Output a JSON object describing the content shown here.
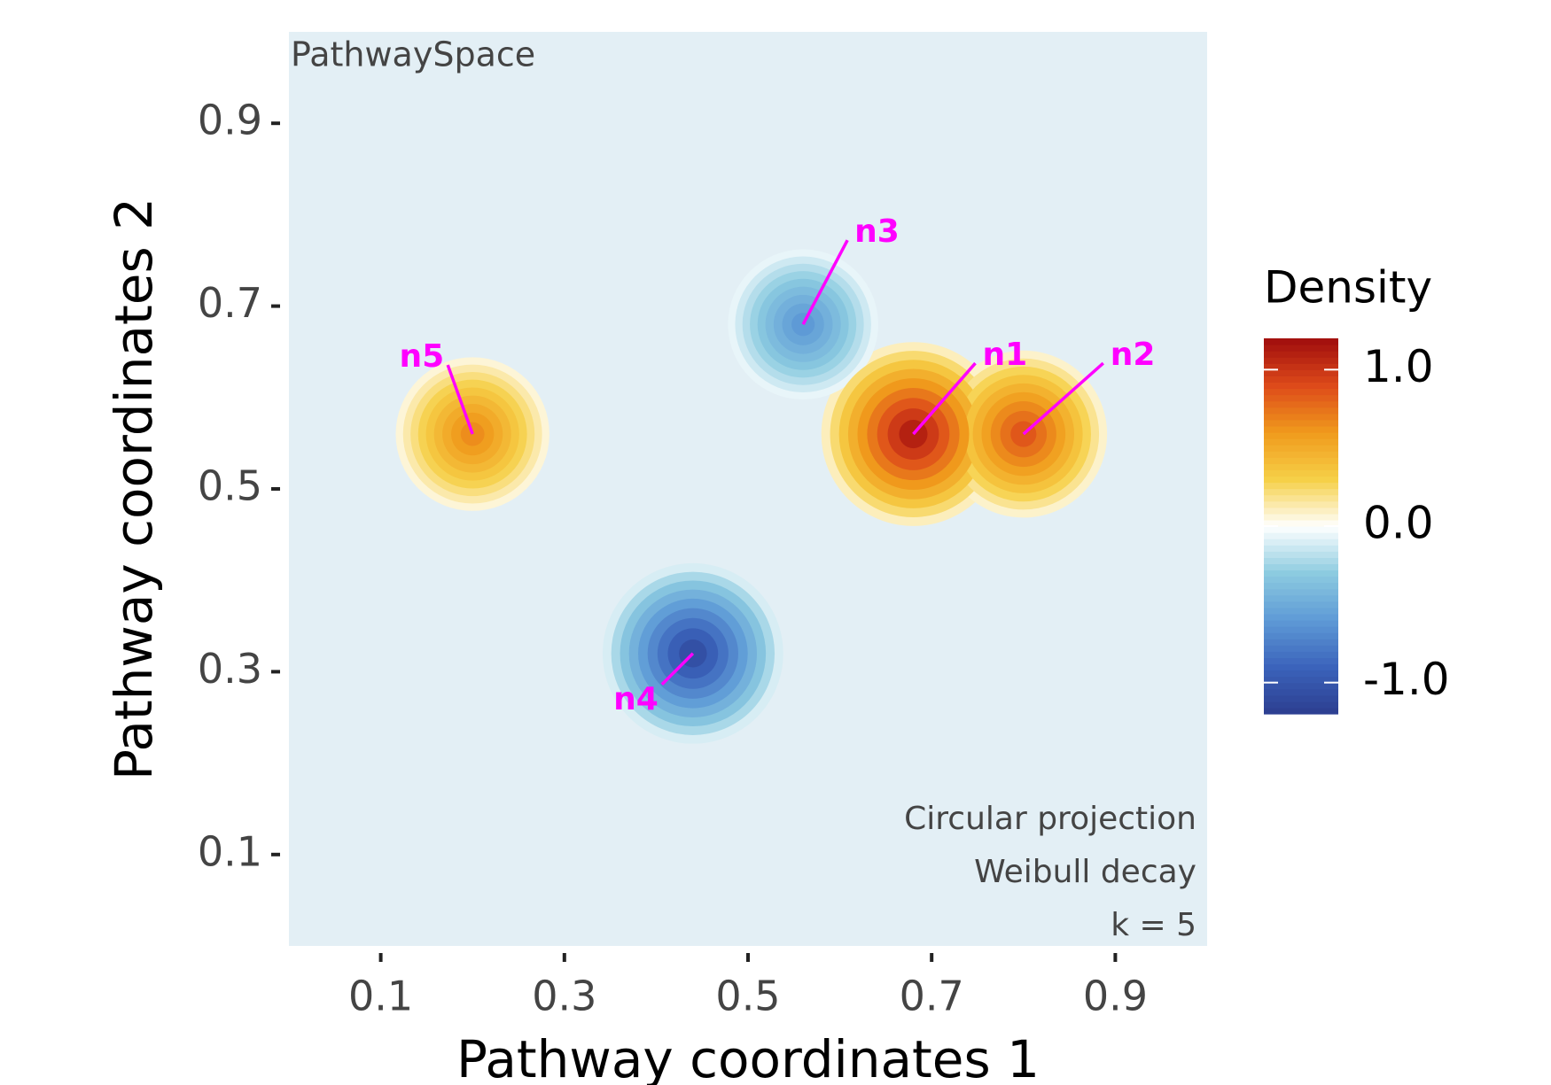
{
  "chart_data": {
    "type": "density",
    "corner_label": "PathwaySpace",
    "x_label": "Pathway coordinates 1",
    "y_label": "Pathway coordinates 2",
    "annotations": [
      "Circular projection",
      "Weibull decay",
      "k = 5"
    ],
    "labels": [
      "n1",
      "n2",
      "n3",
      "n4",
      "n5"
    ],
    "x": [
      0.68,
      0.8,
      0.56,
      0.44,
      0.2
    ],
    "y": [
      0.56,
      0.56,
      0.68,
      0.32,
      0.56
    ],
    "values": [
      1.1,
      0.85,
      -0.6,
      -1.05,
      0.65
    ],
    "label_color": "#ff00ff",
    "background": "#e3eff5",
    "xlim": [
      0,
      1
    ],
    "ylim": [
      0,
      1
    ],
    "xticks": [
      0.1,
      0.3,
      0.5,
      0.7,
      0.9
    ],
    "yticks": [
      0.1,
      0.3,
      0.5,
      0.7,
      0.9
    ],
    "legend_title": "Density",
    "clim": [
      -1.2,
      1.2
    ],
    "cticks": [
      {
        "value": 1,
        "label": "1.0"
      },
      {
        "value": 0,
        "label": "0.0"
      },
      {
        "value": -1,
        "label": "-1.0"
      }
    ],
    "colormap": [
      "#2c3d8f",
      "#3b63bb",
      "#5e9ad6",
      "#8ccbe0",
      "#ffffff",
      "#f6d048",
      "#f09a1c",
      "#dd4a1a",
      "#a00d0d"
    ]
  }
}
